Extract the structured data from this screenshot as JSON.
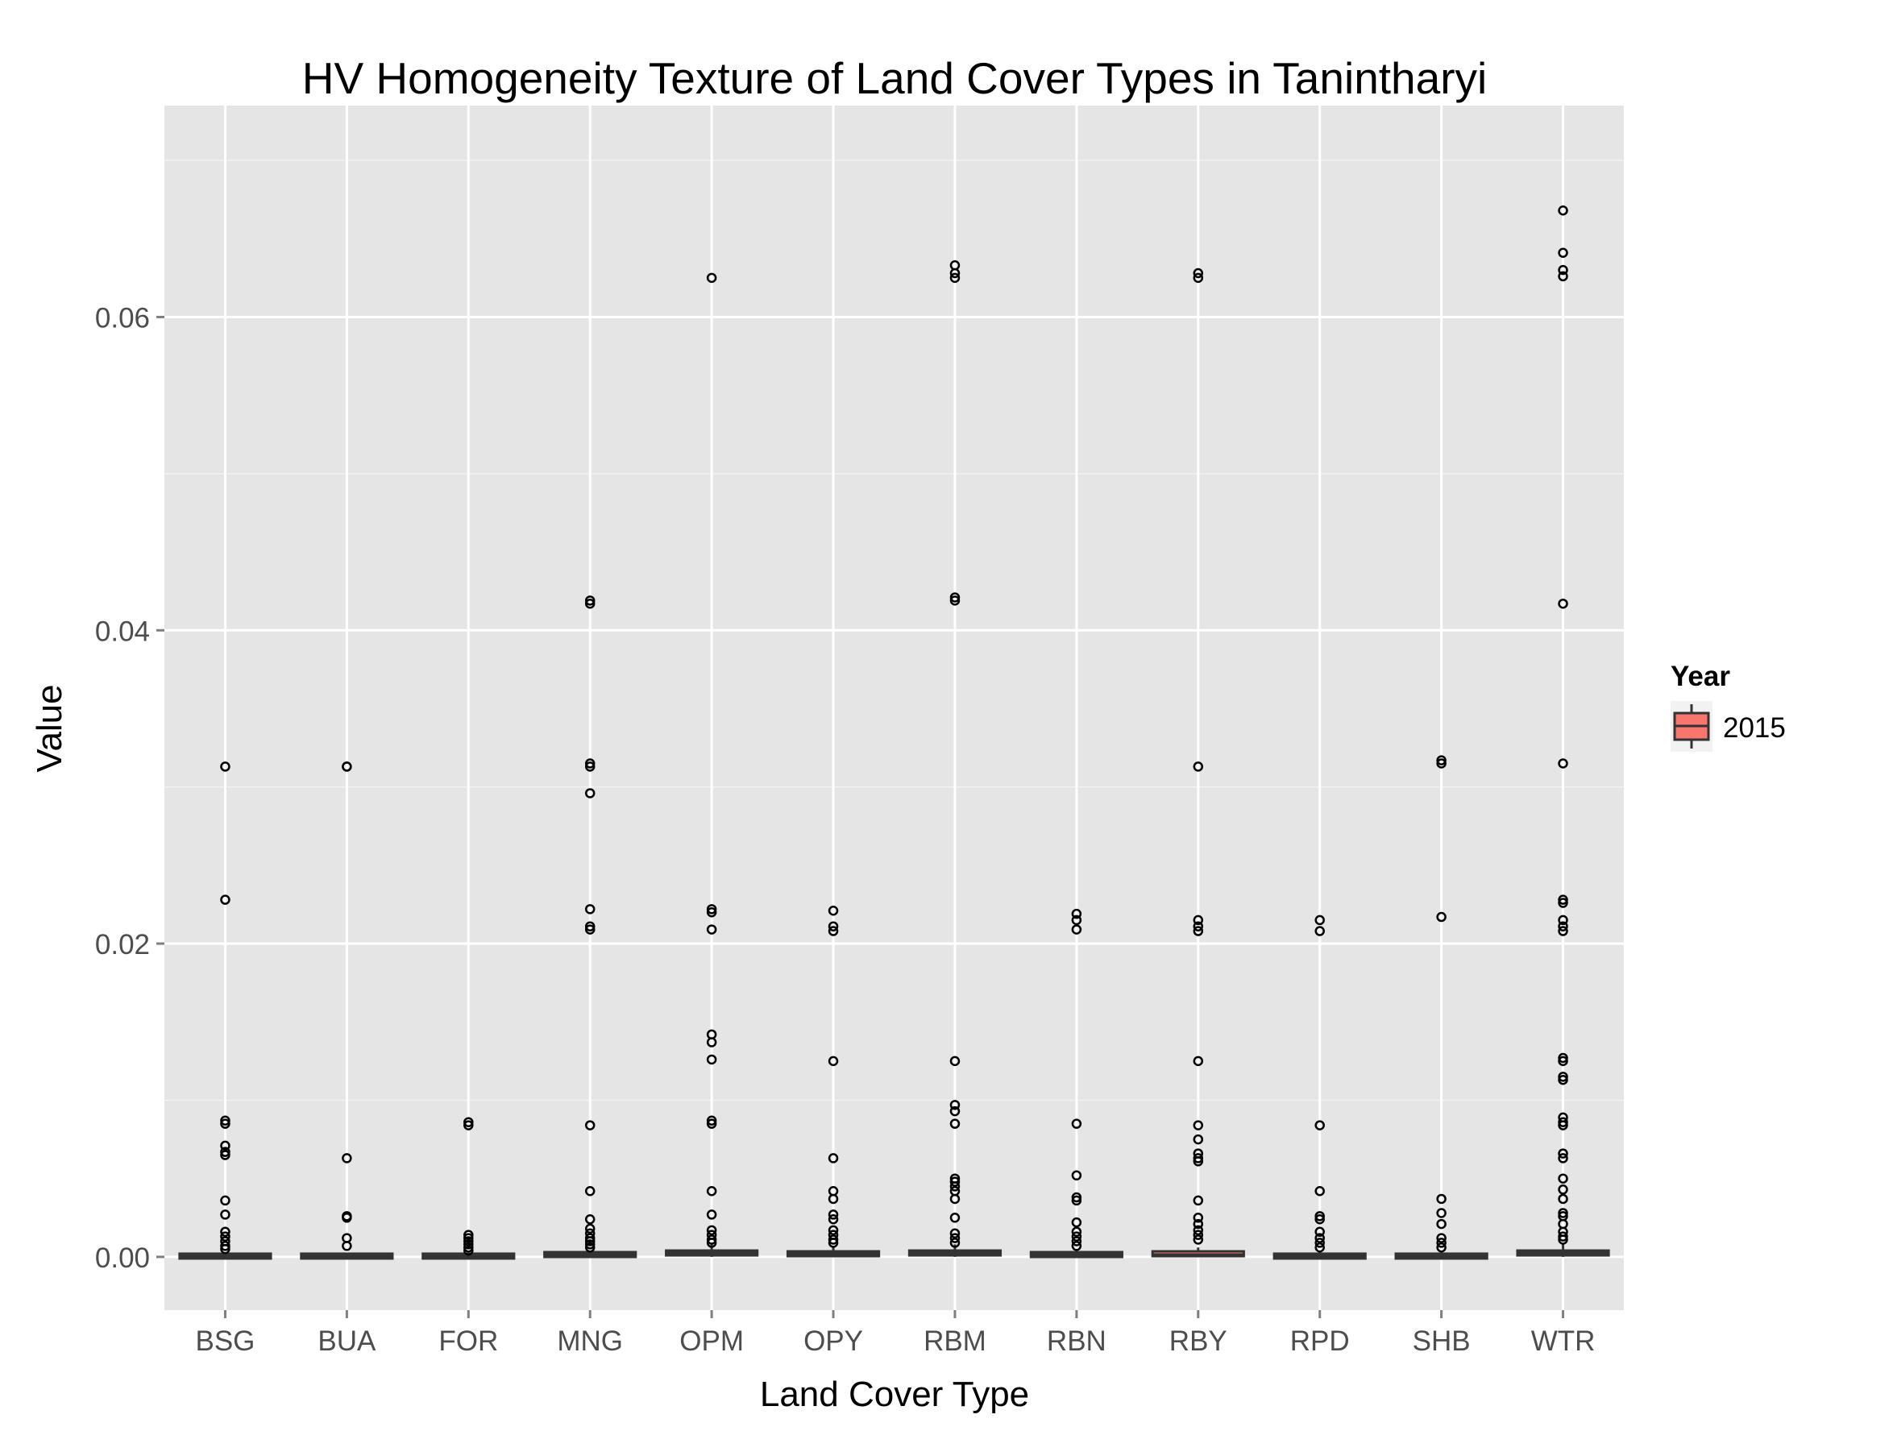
{
  "chart_data": {
    "type": "boxplot",
    "title": "HV Homogeneity Texture of Land Cover Types in Tanintharyi",
    "xlabel": "Land Cover Type",
    "ylabel": "Value",
    "ylim": [
      -0.0034,
      0.0735
    ],
    "yticks": [
      0.0,
      0.02,
      0.04,
      0.06
    ],
    "ytick_labels": [
      "0.00",
      "0.02",
      "0.04",
      "0.06"
    ],
    "grid": true,
    "legend": {
      "title": "Year",
      "position": "right",
      "entries": [
        "2015"
      ]
    },
    "colors": {
      "panel": "#E5E5E5",
      "grid_major": "#FFFFFF",
      "grid_minor": "#F2F2F2",
      "box_fill": "#F8766D",
      "box_line": "#333333"
    },
    "categories": [
      "BSG",
      "BUA",
      "FOR",
      "MNG",
      "OPM",
      "OPY",
      "RBM",
      "RBN",
      "RBY",
      "RPD",
      "SHB",
      "WTR"
    ],
    "series": [
      {
        "name": "2015",
        "boxes": [
          {
            "category": "BSG",
            "min": 0.0,
            "q1": 0.0,
            "median": 0.0,
            "q3": 0.0001,
            "max": 0.0002,
            "outliers": [
              0.0313,
              0.0228,
              0.0087,
              0.0085,
              0.0071,
              0.0067,
              0.0065,
              0.0036,
              0.0027,
              0.0016,
              0.0013,
              0.001,
              0.0007,
              0.0005
            ]
          },
          {
            "category": "BUA",
            "min": 0.0,
            "q1": 0.0,
            "median": 0.0,
            "q3": 0.0001,
            "max": 0.0002,
            "outliers": [
              0.0313,
              0.0313,
              0.0063,
              0.0026,
              0.0025,
              0.0012,
              0.0007
            ]
          },
          {
            "category": "FOR",
            "min": 0.0,
            "q1": 0.0,
            "median": 0.0,
            "q3": 0.0001,
            "max": 0.0002,
            "outliers": [
              0.0086,
              0.0084,
              0.0014,
              0.0012,
              0.001,
              0.0008,
              0.0006,
              0.0004
            ]
          },
          {
            "category": "MNG",
            "min": 0.0,
            "q1": 0.0001,
            "median": 0.0001,
            "q3": 0.0002,
            "max": 0.0004,
            "outliers": [
              0.0419,
              0.0417,
              0.0315,
              0.0313,
              0.0296,
              0.0222,
              0.0211,
              0.0209,
              0.0084,
              0.0042,
              0.0024,
              0.0018,
              0.0015,
              0.0012,
              0.001,
              0.0008,
              0.0006
            ]
          },
          {
            "category": "OPM",
            "min": 0.0,
            "q1": 0.0001,
            "median": 0.0002,
            "q3": 0.0004,
            "max": 0.0008,
            "outliers": [
              0.0625,
              0.0222,
              0.022,
              0.0209,
              0.0142,
              0.0137,
              0.0126,
              0.0087,
              0.0085,
              0.0042,
              0.0027,
              0.0017,
              0.0014,
              0.0011,
              0.0009
            ]
          },
          {
            "category": "OPY",
            "min": 0.0,
            "q1": 0.0001,
            "median": 0.0002,
            "q3": 0.0003,
            "max": 0.0006,
            "outliers": [
              0.0221,
              0.0211,
              0.0208,
              0.0125,
              0.0063,
              0.0042,
              0.0037,
              0.0027,
              0.0024,
              0.0017,
              0.0014,
              0.0011,
              0.0009
            ]
          },
          {
            "category": "RBM",
            "min": 0.0,
            "q1": 0.0001,
            "median": 0.0002,
            "q3": 0.0004,
            "max": 0.0008,
            "outliers": [
              0.0633,
              0.0628,
              0.0625,
              0.0421,
              0.0419,
              0.0125,
              0.0097,
              0.0093,
              0.0085,
              0.005,
              0.0048,
              0.0045,
              0.0042,
              0.0037,
              0.0025,
              0.0015,
              0.0012,
              0.0009
            ]
          },
          {
            "category": "RBN",
            "min": 0.0,
            "q1": 0.0001,
            "median": 0.0001,
            "q3": 0.0002,
            "max": 0.0004,
            "outliers": [
              0.0219,
              0.0215,
              0.0209,
              0.0085,
              0.0052,
              0.0038,
              0.0036,
              0.0022,
              0.0016,
              0.0013,
              0.001,
              0.0007
            ]
          },
          {
            "category": "RBY",
            "min": 0.0,
            "q1": 0.0001,
            "median": 0.0001,
            "q3": 0.0003,
            "max": 0.0006,
            "outliers": [
              0.0628,
              0.0625,
              0.0313,
              0.0215,
              0.0211,
              0.0208,
              0.0125,
              0.0084,
              0.0075,
              0.0066,
              0.0063,
              0.0061,
              0.0036,
              0.0025,
              0.0021,
              0.0017,
              0.0014,
              0.0011
            ]
          },
          {
            "category": "RPD",
            "min": 0.0,
            "q1": 0.0,
            "median": 0.0001,
            "q3": 0.0001,
            "max": 0.0003,
            "outliers": [
              0.0215,
              0.0208,
              0.0084,
              0.0042,
              0.0026,
              0.0024,
              0.0016,
              0.0012,
              0.0009,
              0.0006
            ]
          },
          {
            "category": "SHB",
            "min": 0.0,
            "q1": 0.0,
            "median": 0.0,
            "q3": 0.0001,
            "max": 0.0002,
            "outliers": [
              0.0317,
              0.0315,
              0.0217,
              0.0037,
              0.0028,
              0.0021,
              0.0012,
              0.0009,
              0.0006
            ]
          },
          {
            "category": "WTR",
            "min": 0.0,
            "q1": 0.0001,
            "median": 0.0002,
            "q3": 0.0004,
            "max": 0.0008,
            "outliers": [
              0.0668,
              0.0641,
              0.063,
              0.0626,
              0.0417,
              0.0315,
              0.0228,
              0.0226,
              0.0215,
              0.0211,
              0.0208,
              0.0127,
              0.0125,
              0.0115,
              0.0113,
              0.0089,
              0.0086,
              0.0084,
              0.0066,
              0.0063,
              0.005,
              0.0043,
              0.0037,
              0.0028,
              0.0026,
              0.0021,
              0.0016,
              0.0013,
              0.0011
            ]
          }
        ]
      }
    ]
  }
}
